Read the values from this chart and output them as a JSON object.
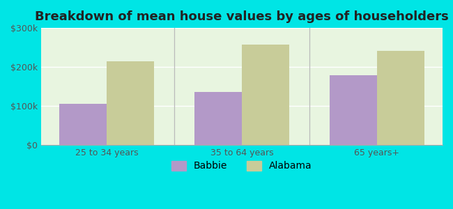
{
  "title": "Breakdown of mean house values by ages of householders",
  "categories": [
    "25 to 34 years",
    "35 to 64 years",
    "65 years+"
  ],
  "babbie_values": [
    105000,
    135000,
    178000
  ],
  "alabama_values": [
    215000,
    258000,
    242000
  ],
  "babbie_color": "#b399c8",
  "alabama_color": "#c8cc99",
  "background_outer": "#00e5e5",
  "background_inner": "#e8f5e0",
  "ylim": [
    0,
    300000
  ],
  "yticks": [
    0,
    100000,
    200000,
    300000
  ],
  "ytick_labels": [
    "$0",
    "$100k",
    "$200k",
    "$300k"
  ],
  "legend_labels": [
    "Babbie",
    "Alabama"
  ],
  "bar_width": 0.35,
  "title_fontsize": 13,
  "tick_fontsize": 9,
  "legend_fontsize": 10
}
